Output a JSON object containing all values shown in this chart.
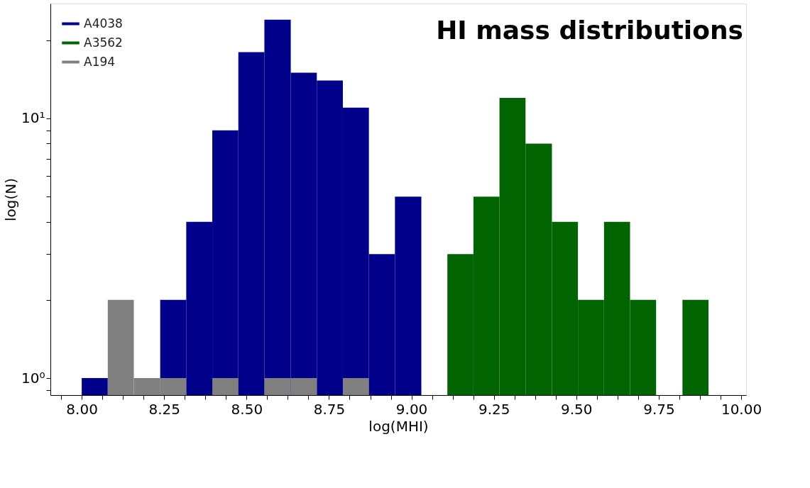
{
  "chart_data": {
    "type": "histogram",
    "title": "HI mass distributions",
    "xlabel": "log(MHI)",
    "ylabel": "log(N)",
    "log": "y",
    "bins": [
      8.0,
      8.079,
      8.158,
      8.238,
      8.317,
      8.396,
      8.475,
      8.554,
      8.634,
      8.713,
      8.792,
      8.871,
      8.95,
      9.03,
      9.109,
      9.188,
      9.267,
      9.346,
      9.426,
      9.505,
      9.584,
      9.663,
      9.742,
      9.822,
      9.901
    ],
    "series": [
      {
        "name": "A4038",
        "color": "#00008b",
        "values": [
          1,
          null,
          null,
          2,
          4,
          9,
          18,
          24,
          15,
          14,
          11,
          3,
          5,
          null,
          null,
          null,
          null,
          null,
          null,
          null,
          null,
          null,
          null,
          null
        ]
      },
      {
        "name": "A3562",
        "color": "#006400",
        "values": [
          null,
          null,
          null,
          null,
          null,
          null,
          null,
          null,
          null,
          null,
          null,
          null,
          null,
          null,
          3,
          5,
          12,
          8,
          4,
          2,
          4,
          2,
          null,
          2
        ]
      },
      {
        "name": "A194",
        "color": "#808080",
        "values": [
          null,
          2,
          1,
          1,
          null,
          1,
          null,
          1,
          1,
          null,
          1,
          null,
          null,
          null,
          null,
          null,
          null,
          null,
          null,
          null,
          null,
          null,
          null,
          null
        ]
      }
    ],
    "xlim": [
      7.905,
      10.015
    ],
    "xticks": [
      {
        "value": 7.9375,
        "label": null
      },
      {
        "value": 8.0,
        "label": "8.00"
      },
      {
        "value": 8.0625,
        "label": null
      },
      {
        "value": 8.125,
        "label": null
      },
      {
        "value": 8.1875,
        "label": null
      },
      {
        "value": 8.25,
        "label": "8.25"
      },
      {
        "value": 8.3125,
        "label": null
      },
      {
        "value": 8.375,
        "label": null
      },
      {
        "value": 8.4375,
        "label": null
      },
      {
        "value": 8.5,
        "label": "8.50"
      },
      {
        "value": 8.5625,
        "label": null
      },
      {
        "value": 8.625,
        "label": null
      },
      {
        "value": 8.6875,
        "label": null
      },
      {
        "value": 8.75,
        "label": "8.75"
      },
      {
        "value": 8.8125,
        "label": null
      },
      {
        "value": 8.875,
        "label": null
      },
      {
        "value": 8.9375,
        "label": null
      },
      {
        "value": 9.0,
        "label": "9.00"
      },
      {
        "value": 9.0625,
        "label": null
      },
      {
        "value": 9.125,
        "label": null
      },
      {
        "value": 9.1875,
        "label": null
      },
      {
        "value": 9.25,
        "label": "9.25"
      },
      {
        "value": 9.3125,
        "label": null
      },
      {
        "value": 9.375,
        "label": null
      },
      {
        "value": 9.4375,
        "label": null
      },
      {
        "value": 9.5,
        "label": "9.50"
      },
      {
        "value": 9.5625,
        "label": null
      },
      {
        "value": 9.625,
        "label": null
      },
      {
        "value": 9.6875,
        "label": null
      },
      {
        "value": 9.75,
        "label": "9.75"
      },
      {
        "value": 9.8125,
        "label": null
      },
      {
        "value": 9.875,
        "label": null
      },
      {
        "value": 9.9375,
        "label": null
      },
      {
        "value": 10.0,
        "label": "10.00"
      }
    ],
    "ylim": [
      0.86,
      27.7
    ],
    "yticks": [
      {
        "value": 0.9,
        "label": null
      },
      {
        "value": 1,
        "label": "10⁰"
      },
      {
        "value": 2,
        "label": null
      },
      {
        "value": 3,
        "label": null
      },
      {
        "value": 4,
        "label": null
      },
      {
        "value": 5,
        "label": null
      },
      {
        "value": 6,
        "label": null
      },
      {
        "value": 7,
        "label": null
      },
      {
        "value": 8,
        "label": null
      },
      {
        "value": 9,
        "label": null
      },
      {
        "value": 10,
        "label": "10¹"
      },
      {
        "value": 20,
        "label": null
      }
    ],
    "grid": false,
    "legend": "top left"
  }
}
